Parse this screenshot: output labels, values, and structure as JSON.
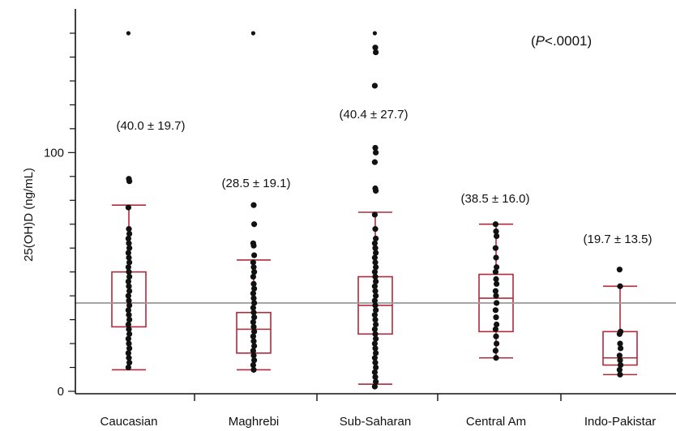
{
  "chart_data": {
    "type": "box",
    "title": "",
    "xlabel": "",
    "ylabel": "25(OH)D (ng/mL)",
    "ylim": [
      0,
      150
    ],
    "yticks": [
      0,
      100
    ],
    "p_value_label": "(P<.0001)",
    "p_value_parts": {
      "open": "(",
      "italic": "P",
      "rest": "<.0001)"
    },
    "reference_line": 37,
    "grid": false,
    "colors": {
      "box": "#b22a3a",
      "point": "#111111",
      "reference_line": "#9a9a9a",
      "axis": "#111111"
    },
    "categories": [
      "Caucasian",
      "Maghrebi",
      "Sub-Saharan",
      "Central Am",
      "Indo-Pakistar"
    ],
    "boxes": [
      {
        "category": "Caucasian",
        "whisker_low": 9,
        "q1": 27,
        "median": 37,
        "q3": 50,
        "whisker_high": 78,
        "mean_sd_label": "(40.0 ± 19.7)"
      },
      {
        "category": "Maghrebi",
        "whisker_low": 9,
        "q1": 16,
        "median": 26,
        "q3": 33,
        "whisker_high": 55,
        "mean_sd_label": "(28.5 ± 19.1)"
      },
      {
        "category": "Sub-Saharan",
        "whisker_low": 3,
        "q1": 24,
        "median": 36,
        "q3": 48,
        "whisker_high": 75,
        "mean_sd_label": "(40.4 ± 27.7)"
      },
      {
        "category": "Central Am",
        "whisker_low": 14,
        "q1": 25,
        "median": 39,
        "q3": 49,
        "whisker_high": 70,
        "mean_sd_label": "(38.5 ± 16.0)"
      },
      {
        "category": "Indo-Pakistar",
        "whisker_low": 7,
        "q1": 11,
        "median": 14,
        "q3": 25,
        "whisker_high": 44,
        "mean_sd_label": "(19.7 ± 13.5)"
      }
    ],
    "points": [
      [
        150,
        89,
        88,
        77,
        68,
        66,
        64,
        62,
        60,
        58,
        56,
        54,
        52,
        50,
        48,
        46,
        44,
        42,
        40,
        38,
        36,
        34,
        32,
        30,
        28,
        26,
        24,
        22,
        20,
        18,
        16,
        14,
        12,
        10
      ],
      [
        150,
        78,
        70,
        62,
        61,
        57,
        54,
        52,
        50,
        48,
        45,
        43,
        41,
        39,
        37,
        35,
        33,
        31,
        29,
        27,
        25,
        23,
        21,
        19,
        17,
        15,
        13,
        11,
        9
      ],
      [
        150,
        144,
        142,
        128,
        102,
        100,
        96,
        85,
        84,
        74,
        68,
        64,
        62,
        60,
        58,
        56,
        54,
        52,
        50,
        48,
        46,
        44,
        42,
        40,
        38,
        36,
        34,
        32,
        30,
        28,
        26,
        24,
        22,
        20,
        18,
        16,
        14,
        12,
        10,
        8,
        6,
        4,
        2
      ],
      [
        70,
        67,
        65,
        60,
        56,
        52,
        50,
        47,
        45,
        42,
        40,
        37,
        34,
        31,
        28,
        26,
        23,
        20,
        17,
        14
      ],
      [
        51,
        44,
        25,
        24,
        20,
        18,
        15,
        13,
        11,
        9,
        7
      ]
    ]
  }
}
